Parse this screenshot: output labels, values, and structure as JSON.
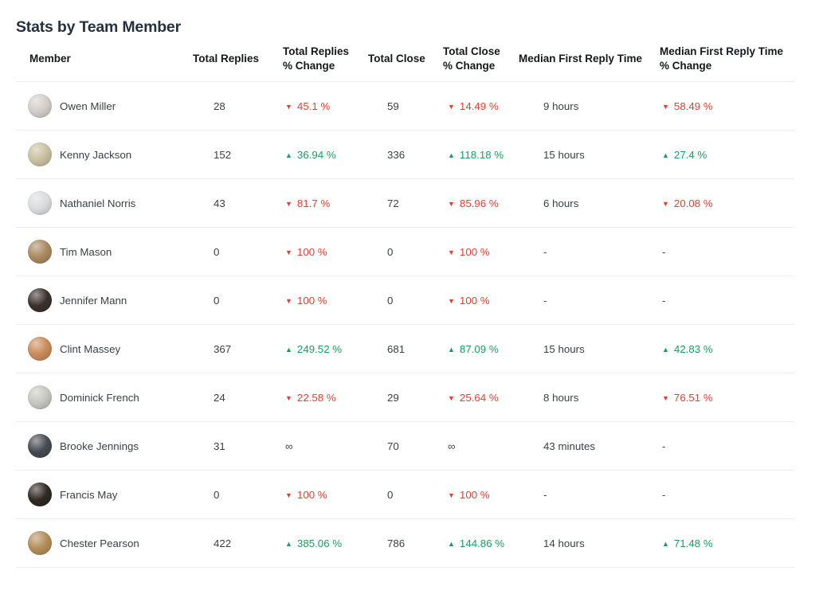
{
  "page": {
    "title": "Stats by Team Member"
  },
  "colors": {
    "positive": "#16a05d",
    "negative": "#e93d2f",
    "title_text": "#24323f",
    "header_text": "#15181b",
    "body_text": "#3a4045",
    "divider": "#ececef"
  },
  "table": {
    "columns": [
      {
        "key": "member",
        "label": "Member"
      },
      {
        "key": "total-replies",
        "label": "Total Replies"
      },
      {
        "key": "total-replies-change",
        "label": "Total Replies\n% Change"
      },
      {
        "key": "total-close",
        "label": "Total Close"
      },
      {
        "key": "total-close-change",
        "label": "Total Close\n% Change"
      },
      {
        "key": "median-first-reply-time",
        "label": "Median First Reply Time"
      },
      {
        "key": "median-first-reply-time-change",
        "label": "Median First Reply Time\n% Change"
      }
    ],
    "rows": [
      {
        "member": "Owen Miller",
        "avatar_color": "#d3cdc9",
        "total_replies": "28",
        "total_replies_change": {
          "direction": "down",
          "value": "45.1 %"
        },
        "total_close": "59",
        "total_close_change": {
          "direction": "down",
          "value": "14.49 %"
        },
        "median_first_reply_time": "9 hours",
        "median_first_reply_time_change": {
          "direction": "down",
          "value": "58.49 %"
        }
      },
      {
        "member": "Kenny Jackson",
        "avatar_color": "#c9bfa0",
        "total_replies": "152",
        "total_replies_change": {
          "direction": "up",
          "value": "36.94 %"
        },
        "total_close": "336",
        "total_close_change": {
          "direction": "up",
          "value": "118.18 %"
        },
        "median_first_reply_time": "15 hours",
        "median_first_reply_time_change": {
          "direction": "up",
          "value": "27.4 %"
        }
      },
      {
        "member": "Nathaniel Norris",
        "avatar_color": "#dadbdd",
        "total_replies": "43",
        "total_replies_change": {
          "direction": "down",
          "value": "81.7 %"
        },
        "total_close": "72",
        "total_close_change": {
          "direction": "down",
          "value": "85.96 %"
        },
        "median_first_reply_time": "6 hours",
        "median_first_reply_time_change": {
          "direction": "down",
          "value": "20.08 %"
        }
      },
      {
        "member": "Tim Mason",
        "avatar_color": "#a9885e",
        "total_replies": "0",
        "total_replies_change": {
          "direction": "down",
          "value": "100 %"
        },
        "total_close": "0",
        "total_close_change": {
          "direction": "down",
          "value": "100 %"
        },
        "median_first_reply_time": "-",
        "median_first_reply_time_change": {
          "direction": "none",
          "value": "-"
        }
      },
      {
        "member": "Jennifer Mann",
        "avatar_color": "#3a312c",
        "total_replies": "0",
        "total_replies_change": {
          "direction": "down",
          "value": "100 %"
        },
        "total_close": "0",
        "total_close_change": {
          "direction": "down",
          "value": "100 %"
        },
        "median_first_reply_time": "-",
        "median_first_reply_time_change": {
          "direction": "none",
          "value": "-"
        }
      },
      {
        "member": "Clint Massey",
        "avatar_color": "#c98a5a",
        "total_replies": "367",
        "total_replies_change": {
          "direction": "up",
          "value": "249.52 %"
        },
        "total_close": "681",
        "total_close_change": {
          "direction": "up",
          "value": "87.09 %"
        },
        "median_first_reply_time": "15 hours",
        "median_first_reply_time_change": {
          "direction": "up",
          "value": "42.83 %"
        }
      },
      {
        "member": "Dominick French",
        "avatar_color": "#c6c6c0",
        "total_replies": "24",
        "total_replies_change": {
          "direction": "down",
          "value": "22.58 %"
        },
        "total_close": "29",
        "total_close_change": {
          "direction": "down",
          "value": "25.64 %"
        },
        "median_first_reply_time": "8 hours",
        "median_first_reply_time_change": {
          "direction": "down",
          "value": "76.51 %"
        }
      },
      {
        "member": "Brooke Jennings",
        "avatar_color": "#474a52",
        "total_replies": "31",
        "total_replies_change": {
          "direction": "infinity",
          "value": "∞"
        },
        "total_close": "70",
        "total_close_change": {
          "direction": "infinity",
          "value": "∞"
        },
        "median_first_reply_time": "43 minutes",
        "median_first_reply_time_change": {
          "direction": "none",
          "value": "-"
        }
      },
      {
        "member": "Francis May",
        "avatar_color": "#2f2823",
        "total_replies": "0",
        "total_replies_change": {
          "direction": "down",
          "value": "100 %"
        },
        "total_close": "0",
        "total_close_change": {
          "direction": "down",
          "value": "100 %"
        },
        "median_first_reply_time": "-",
        "median_first_reply_time_change": {
          "direction": "none",
          "value": "-"
        }
      },
      {
        "member": "Chester Pearson",
        "avatar_color": "#b28c58",
        "total_replies": "422",
        "total_replies_change": {
          "direction": "up",
          "value": "385.06 %"
        },
        "total_close": "786",
        "total_close_change": {
          "direction": "up",
          "value": "144.86 %"
        },
        "median_first_reply_time": "14 hours",
        "median_first_reply_time_change": {
          "direction": "up",
          "value": "71.48 %"
        }
      }
    ]
  }
}
